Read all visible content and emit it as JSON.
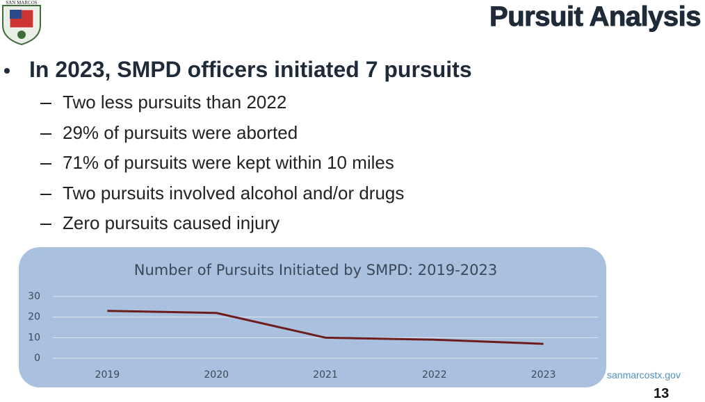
{
  "header": {
    "title": "Pursuit Analysis",
    "logo_text": "SAN MARCOS"
  },
  "bullets": {
    "main": "In 2023, SMPD officers initiated 7 pursuits",
    "sub": [
      "Two less pursuits than 2022",
      "29% of pursuits were aborted",
      "71% of pursuits were kept within 10 miles",
      "Two pursuits involved alcohol and/or drugs",
      "Zero pursuits caused injury"
    ]
  },
  "chart_data": {
    "type": "line",
    "title": "Number of Pursuits Initiated by SMPD: 2019-2023",
    "categories": [
      "2019",
      "2020",
      "2021",
      "2022",
      "2023"
    ],
    "values": [
      23,
      22,
      10,
      9,
      7
    ],
    "color": "#6e1d1d",
    "ylim": [
      0,
      30
    ],
    "yticks": [
      0,
      10,
      20,
      30
    ],
    "grid": true
  },
  "footer": {
    "url": "sanmarcostx.gov",
    "page": "13"
  }
}
